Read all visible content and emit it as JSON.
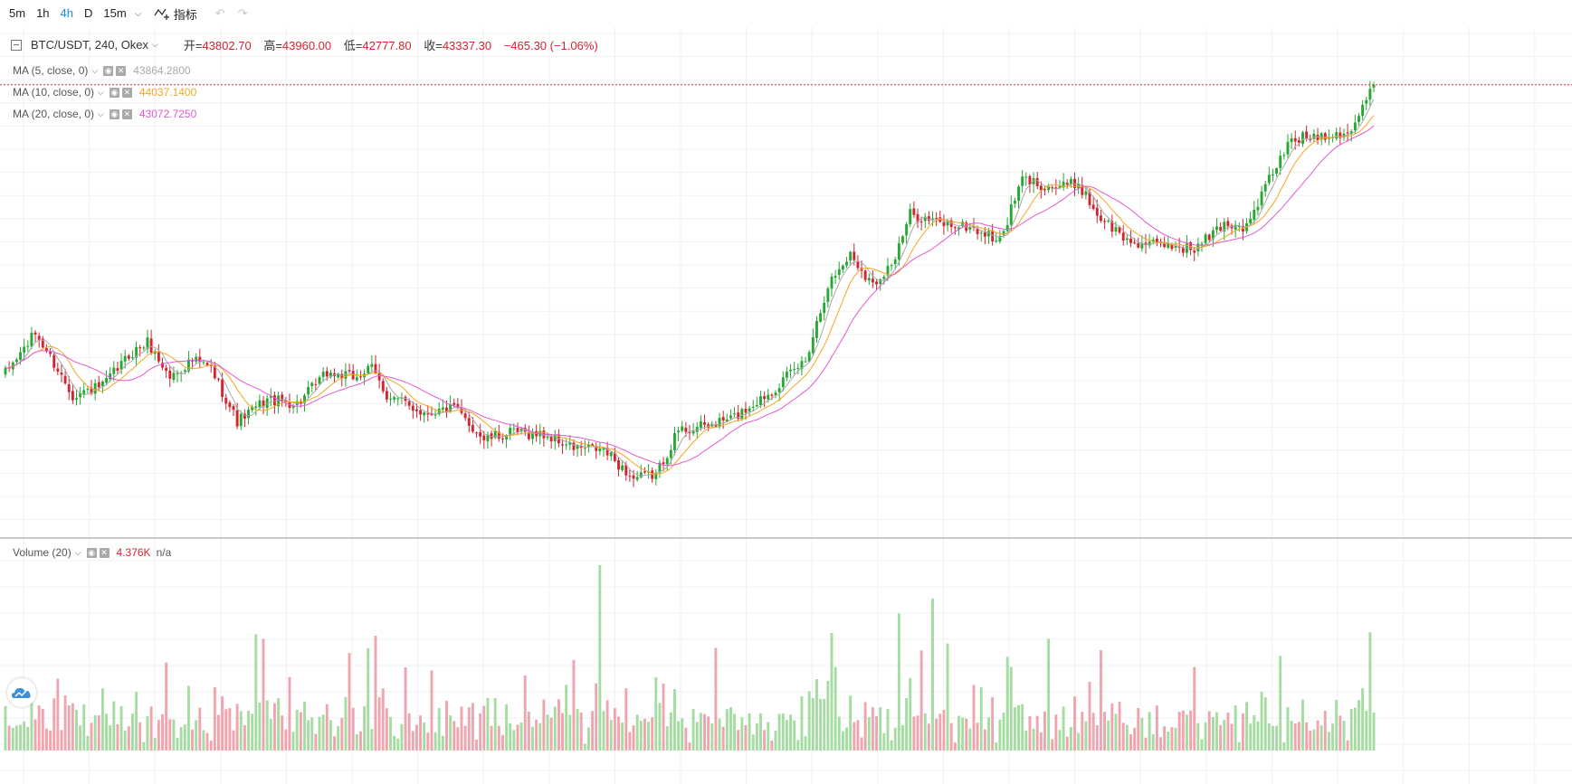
{
  "toolbar": {
    "intervals": [
      {
        "label": "5m",
        "active": false
      },
      {
        "label": "1h",
        "active": false
      },
      {
        "label": "4h",
        "active": true
      },
      {
        "label": "D",
        "active": false
      },
      {
        "label": "15m",
        "active": false
      }
    ],
    "indicators_label": "指标",
    "icons": [
      "chevron-down-icon",
      "indicator-icon",
      "undo-icon",
      "redo-icon"
    ]
  },
  "legend": {
    "symbol": "BTC/USDT, 240, Okex",
    "open_label": "开=",
    "open": "43802.70",
    "high_label": "高=",
    "high": "43960.00",
    "low_label": "低=",
    "low": "42777.80",
    "close_label": "收=",
    "close": "43337.30",
    "change": "−465.30 (−1.06%)",
    "ma": [
      {
        "name": "MA (5, close, 0)",
        "value": "43864.2800",
        "color": "#a9a9a9"
      },
      {
        "name": "MA (10, close, 0)",
        "value": "44037.1400",
        "color": "#f5a623"
      },
      {
        "name": "MA (20, close, 0)",
        "value": "43072.7250",
        "color": "#e15ad1"
      }
    ],
    "volume": {
      "name": "Volume (20)",
      "value": "4.376K",
      "ma_value": "n/a"
    }
  },
  "colors": {
    "up": "#26a833",
    "down": "#d5232f",
    "vol_up": "#a5dca1",
    "vol_down": "#efa4ae",
    "price_line": "#e03030"
  },
  "chart_data": {
    "type": "candlestick",
    "series_keypoints": [
      [
        0,
        36800
      ],
      [
        8,
        37700
      ],
      [
        11,
        37300
      ],
      [
        18,
        36300
      ],
      [
        26,
        36500
      ],
      [
        33,
        37200
      ],
      [
        38,
        37500
      ],
      [
        44,
        36700
      ],
      [
        50,
        37100
      ],
      [
        55,
        36900
      ],
      [
        62,
        35700
      ],
      [
        70,
        36200
      ],
      [
        78,
        36100
      ],
      [
        86,
        36800
      ],
      [
        93,
        36700
      ],
      [
        98,
        36900
      ],
      [
        102,
        36300
      ],
      [
        112,
        35900
      ],
      [
        120,
        36000
      ],
      [
        128,
        35300
      ],
      [
        136,
        35450
      ],
      [
        144,
        35400
      ],
      [
        152,
        35100
      ],
      [
        160,
        35050
      ],
      [
        168,
        34400
      ],
      [
        174,
        34500
      ],
      [
        180,
        35500
      ],
      [
        188,
        35600
      ],
      [
        195,
        35800
      ],
      [
        205,
        36400
      ],
      [
        214,
        37100
      ],
      [
        220,
        38800
      ],
      [
        226,
        39500
      ],
      [
        232,
        38800
      ],
      [
        238,
        39400
      ],
      [
        242,
        40400
      ],
      [
        250,
        40200
      ],
      [
        258,
        40100
      ],
      [
        266,
        39800
      ],
      [
        272,
        41200
      ],
      [
        280,
        41000
      ],
      [
        287,
        41100
      ],
      [
        292,
        40400
      ],
      [
        300,
        39800
      ],
      [
        306,
        39700
      ],
      [
        312,
        39700
      ],
      [
        318,
        39600
      ],
      [
        326,
        40200
      ],
      [
        332,
        40100
      ],
      [
        338,
        41200
      ],
      [
        344,
        42100
      ],
      [
        352,
        42200
      ],
      [
        360,
        42300
      ],
      [
        366,
        43300
      ]
    ],
    "last_price": 43337.3,
    "candle_count": 367
  }
}
